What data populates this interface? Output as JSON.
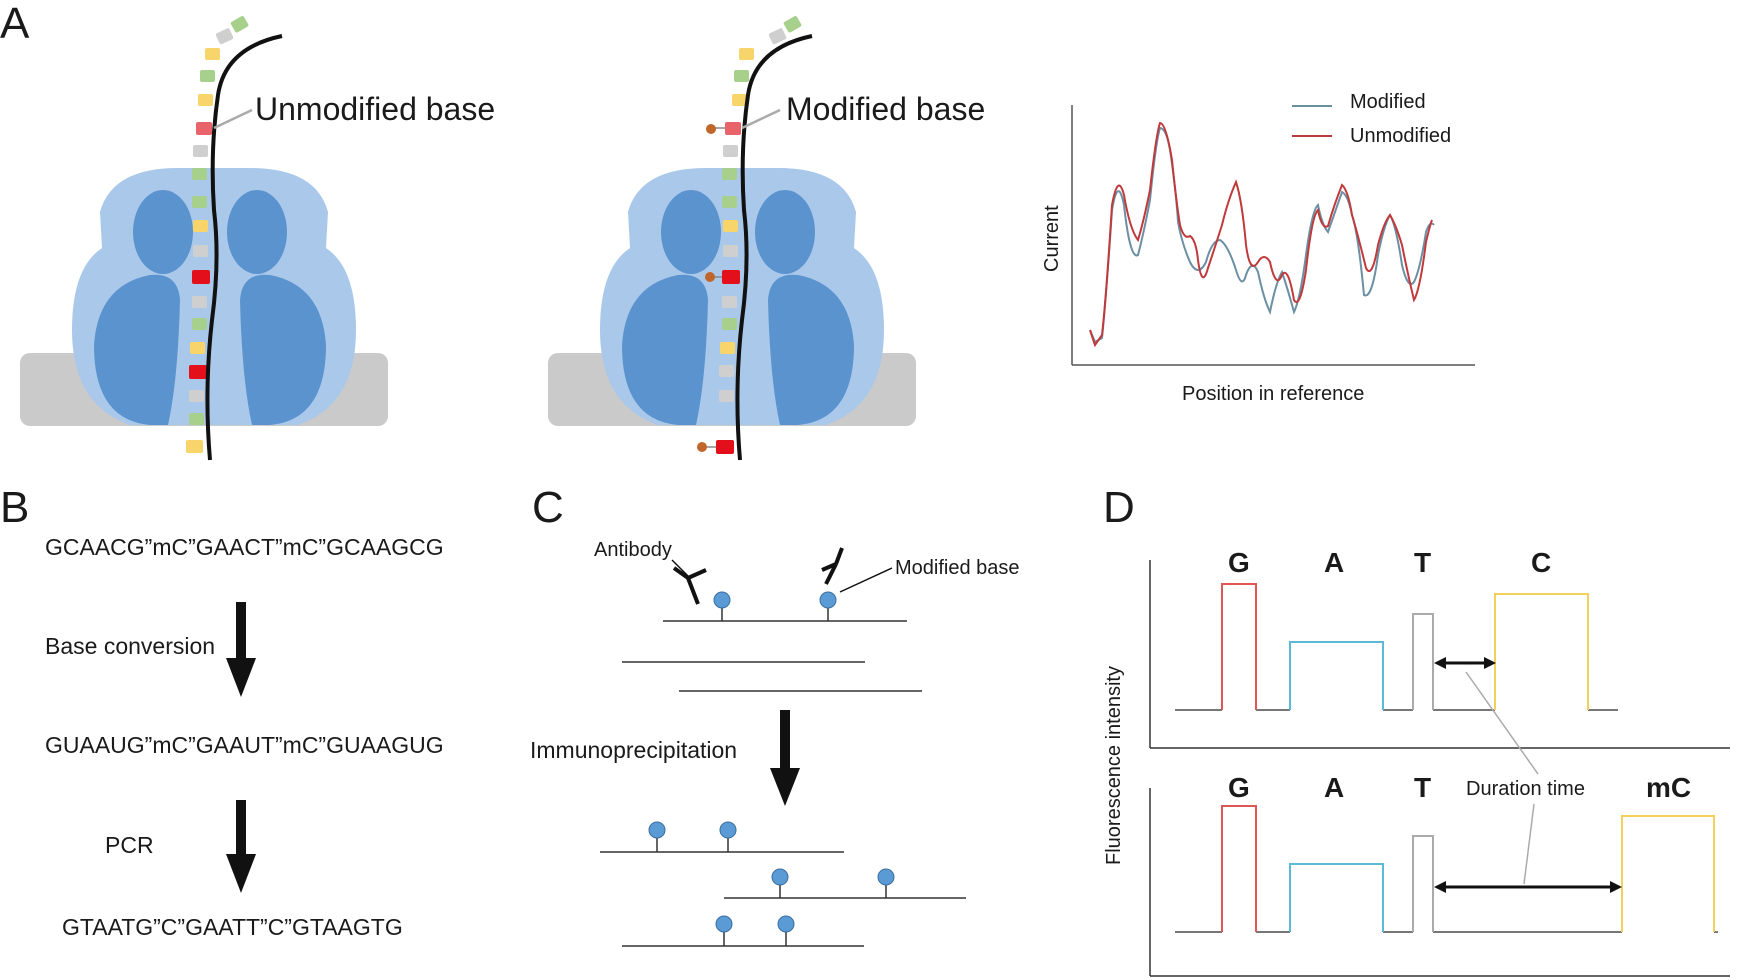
{
  "panels": {
    "a": {
      "letter": "A",
      "left_label": "Unmodified base",
      "right_label": "Modified base",
      "chart": {
        "xlabel": "Position in reference",
        "ylabel": "Current",
        "legend": [
          "Modified",
          "Unmodified"
        ],
        "colors": {
          "modified": "#6b8fa3",
          "unmodified": "#c0393b"
        }
      }
    },
    "b": {
      "letter": "B",
      "seq1": "GCAACG”mC”GAACT”mC”GCAAGCG",
      "step1": "Base conversion",
      "seq2": "GUAAUG”mC”GAAUT”mC”GUAAGUG",
      "step2": "PCR",
      "seq3": "GTAATG”C”GAATT”C”GTAAGTG"
    },
    "c": {
      "letter": "C",
      "antibody_label": "Antibody",
      "modified_label": "Modified base",
      "step": "Immunoprecipitation"
    },
    "d": {
      "letter": "D",
      "ylabel": "Fluorescence intensity",
      "top_bases": [
        "G",
        "A",
        "T",
        "C"
      ],
      "bottom_bases": [
        "G",
        "A",
        "T",
        "mC"
      ],
      "duration_label": "Duration time"
    }
  },
  "colors": {
    "nanopore": "#5b93cf",
    "nanopore_light": "#a9c8ea",
    "membrane": "#cacaca",
    "base_yellow": "#f7d56b",
    "base_green": "#a8d08d",
    "base_gray": "#cfcfcf",
    "base_red_light": "#e8646a",
    "base_red": "#e3101b",
    "mod_dot": "#c0662a",
    "bead": "#5b9bd5",
    "trace_g": "#e05555",
    "trace_a": "#5bbad5",
    "trace_t": "#aaaaaa",
    "trace_c": "#f2d05a"
  }
}
